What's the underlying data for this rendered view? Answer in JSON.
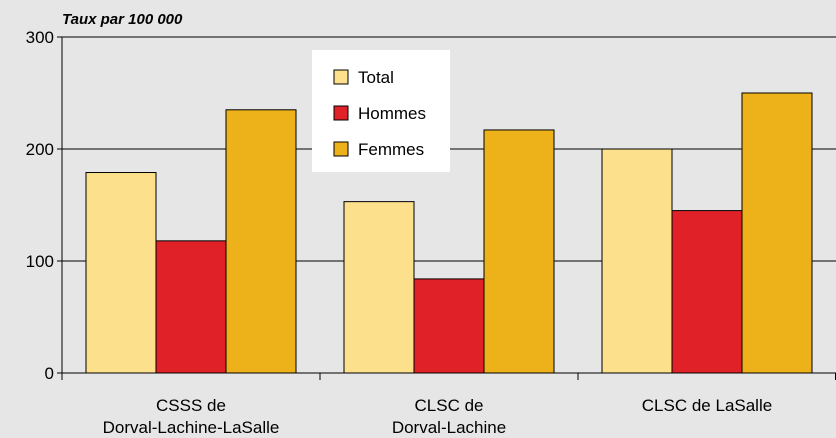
{
  "chart_data": {
    "type": "bar",
    "y_axis_label": "Taux par 100 000",
    "categories": [
      "CSSS de\nDorval-Lachine-LaSalle",
      "CLSC de\nDorval-Lachine",
      "CLSC de LaSalle"
    ],
    "series": [
      {
        "name": "Total",
        "color": "#fde08c",
        "values": [
          179,
          153,
          200
        ]
      },
      {
        "name": "Hommes",
        "color": "#e02128",
        "values": [
          118,
          84,
          145
        ]
      },
      {
        "name": "Femmes",
        "color": "#edb11a",
        "values": [
          235,
          217,
          250
        ]
      }
    ],
    "ylim": [
      0,
      300
    ],
    "yticks": [
      0,
      100,
      200,
      300
    ],
    "grid": true,
    "legend": "top"
  }
}
